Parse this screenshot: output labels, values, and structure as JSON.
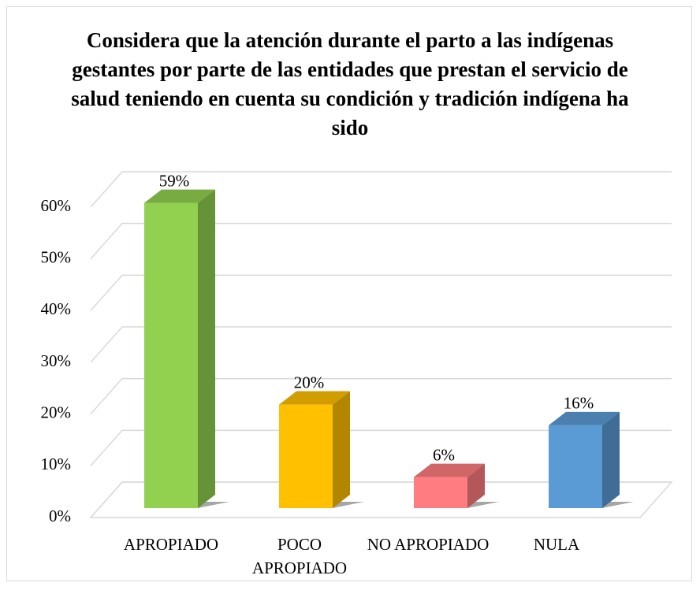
{
  "chart_data": {
    "type": "bar3d",
    "title": "Considera que la atención durante el parto a las indígenas gestantes por parte de las entidades que prestan el servicio de salud teniendo en cuenta su condición y tradición indígena ha sido",
    "categories": [
      "APROPIADO",
      "POCO APROPIADO",
      "NO APROPIADO",
      "NULA"
    ],
    "values": [
      59,
      20,
      6,
      16
    ],
    "value_labels": [
      "59%",
      "20%",
      "6%",
      "16%"
    ],
    "colors": [
      "#92d050",
      "#ffc000",
      "#ff7c80",
      "#5b9bd5"
    ],
    "ylim": [
      0,
      60
    ],
    "yticks": [
      {
        "value": 0,
        "label": "0%"
      },
      {
        "value": 10,
        "label": "10%"
      },
      {
        "value": 20,
        "label": "20%"
      },
      {
        "value": 30,
        "label": "30%"
      },
      {
        "value": 40,
        "label": "40%"
      },
      {
        "value": 50,
        "label": "50%"
      },
      {
        "value": 60,
        "label": "60%"
      }
    ],
    "grid": true
  }
}
